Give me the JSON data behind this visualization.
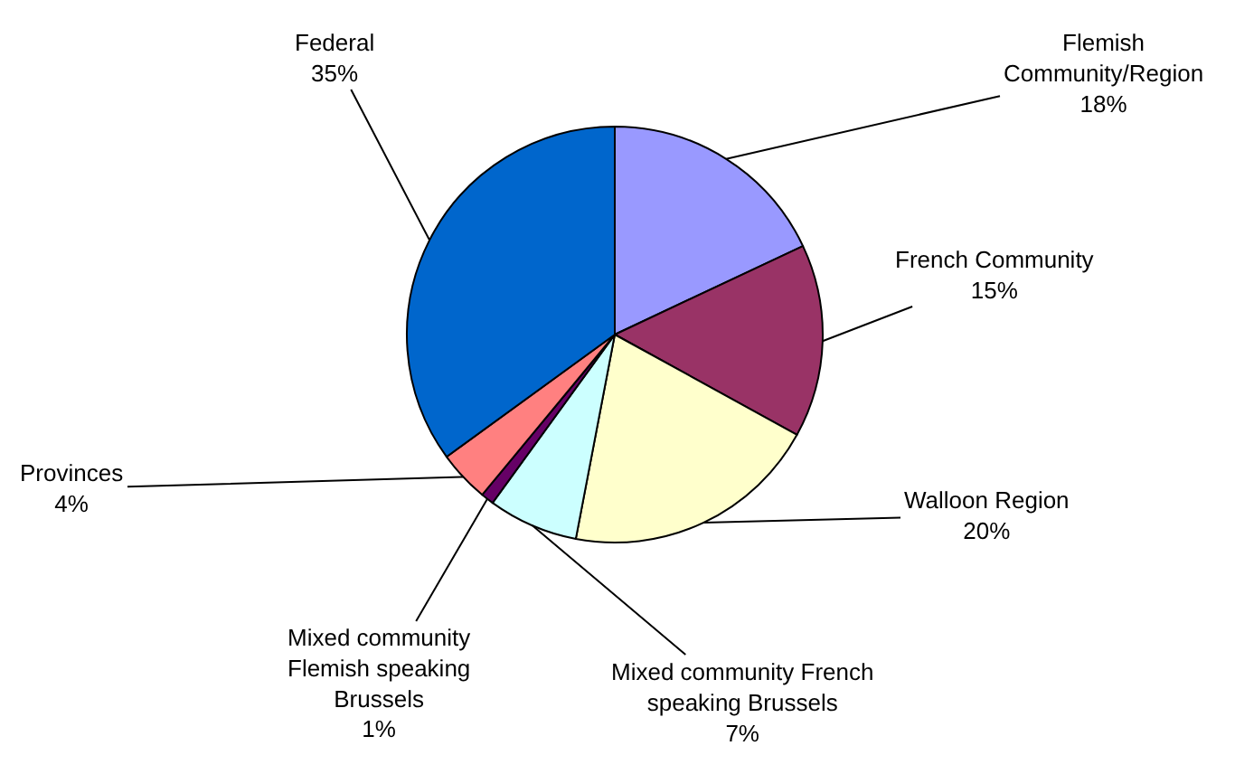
{
  "chart_data": {
    "type": "pie",
    "categories": [
      "Flemish\nCommunity/Region",
      "French Community",
      "Walloon Region",
      "Mixed community French\nspeaking Brussels",
      "Mixed community\nFlemish speaking\nBrussels",
      "Provinces",
      "Federal"
    ],
    "values": [
      18,
      15,
      20,
      7,
      1,
      4,
      35
    ],
    "value_labels": [
      "18%",
      "15%",
      "20%",
      "7%",
      "1%",
      "4%",
      "35%"
    ],
    "colors": [
      "#9999ff",
      "#993366",
      "#ffffcc",
      "#ccffff",
      "#660066",
      "#ff8080",
      "#0066cc"
    ],
    "legend": false
  }
}
